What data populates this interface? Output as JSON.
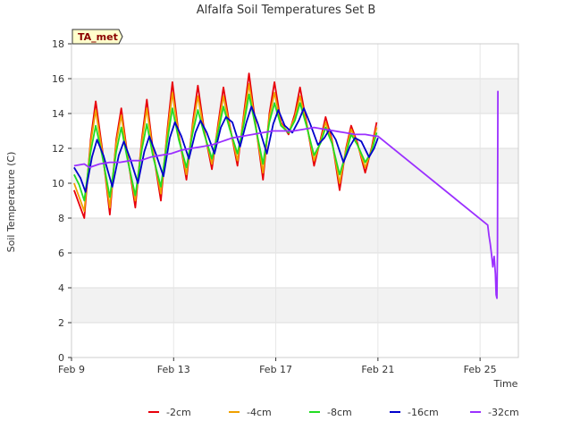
{
  "chart_data": {
    "type": "line",
    "title": "Alfalfa Soil Temperatures Set B",
    "xlabel": "Time",
    "ylabel": "Soil Temperature (C)",
    "badge": "TA_met",
    "ylim": [
      0,
      18
    ],
    "yticks": [
      0,
      2,
      4,
      6,
      8,
      10,
      12,
      14,
      16,
      18
    ],
    "xlim_days": [
      9,
      26.5
    ],
    "xticks": [
      {
        "label": "Feb 9",
        "day": 9
      },
      {
        "label": "Feb 13",
        "day": 13
      },
      {
        "label": "Feb 17",
        "day": 17
      },
      {
        "label": "Feb 21",
        "day": 21
      },
      {
        "label": "Feb 25",
        "day": 25
      }
    ],
    "grid": true,
    "legend_position": "bottom",
    "series": [
      {
        "name": "-2cm",
        "color": "#e8000b",
        "points": [
          [
            9.1,
            9.6
          ],
          [
            9.3,
            8.8
          ],
          [
            9.5,
            8.0
          ],
          [
            9.75,
            12.5
          ],
          [
            9.95,
            14.7
          ],
          [
            10.2,
            12.0
          ],
          [
            10.5,
            8.2
          ],
          [
            10.75,
            12.5
          ],
          [
            10.95,
            14.3
          ],
          [
            11.2,
            11.5
          ],
          [
            11.5,
            8.6
          ],
          [
            11.75,
            12.5
          ],
          [
            11.95,
            14.8
          ],
          [
            12.2,
            11.8
          ],
          [
            12.5,
            9.0
          ],
          [
            12.75,
            13.0
          ],
          [
            12.95,
            15.8
          ],
          [
            13.2,
            12.8
          ],
          [
            13.5,
            10.2
          ],
          [
            13.75,
            13.5
          ],
          [
            13.95,
            15.6
          ],
          [
            14.2,
            13.0
          ],
          [
            14.5,
            10.8
          ],
          [
            14.75,
            13.5
          ],
          [
            14.95,
            15.5
          ],
          [
            15.2,
            13.3
          ],
          [
            15.5,
            11.0
          ],
          [
            15.75,
            14.0
          ],
          [
            15.95,
            16.3
          ],
          [
            16.2,
            13.5
          ],
          [
            16.5,
            10.2
          ],
          [
            16.75,
            14.0
          ],
          [
            16.95,
            15.8
          ],
          [
            17.2,
            13.5
          ],
          [
            17.5,
            12.8
          ],
          [
            17.75,
            14.0
          ],
          [
            17.95,
            15.5
          ],
          [
            18.2,
            13.5
          ],
          [
            18.5,
            11.0
          ],
          [
            18.75,
            12.5
          ],
          [
            18.95,
            13.8
          ],
          [
            19.2,
            12.5
          ],
          [
            19.5,
            9.6
          ],
          [
            19.75,
            12.0
          ],
          [
            19.95,
            13.3
          ],
          [
            20.2,
            12.3
          ],
          [
            20.5,
            10.6
          ],
          [
            20.75,
            12.0
          ],
          [
            20.95,
            13.5
          ]
        ]
      },
      {
        "name": "-4cm",
        "color": "#f0a000",
        "points": [
          [
            9.1,
            10.0
          ],
          [
            9.3,
            9.2
          ],
          [
            9.5,
            8.4
          ],
          [
            9.75,
            12.3
          ],
          [
            9.95,
            14.2
          ],
          [
            10.2,
            11.8
          ],
          [
            10.5,
            8.6
          ],
          [
            10.75,
            12.3
          ],
          [
            10.95,
            13.9
          ],
          [
            11.2,
            11.4
          ],
          [
            11.5,
            9.0
          ],
          [
            11.75,
            12.3
          ],
          [
            11.95,
            14.3
          ],
          [
            12.2,
            11.7
          ],
          [
            12.5,
            9.4
          ],
          [
            12.75,
            12.8
          ],
          [
            12.95,
            15.2
          ],
          [
            13.2,
            12.7
          ],
          [
            13.5,
            10.5
          ],
          [
            13.75,
            13.3
          ],
          [
            13.95,
            15.0
          ],
          [
            14.2,
            12.9
          ],
          [
            14.5,
            11.1
          ],
          [
            14.75,
            13.3
          ],
          [
            14.95,
            15.0
          ],
          [
            15.2,
            13.2
          ],
          [
            15.5,
            11.3
          ],
          [
            15.75,
            13.8
          ],
          [
            15.95,
            15.7
          ],
          [
            16.2,
            13.4
          ],
          [
            16.5,
            10.6
          ],
          [
            16.75,
            13.8
          ],
          [
            16.95,
            15.2
          ],
          [
            17.2,
            13.4
          ],
          [
            17.5,
            12.9
          ],
          [
            17.75,
            13.8
          ],
          [
            17.95,
            15.0
          ],
          [
            18.2,
            13.4
          ],
          [
            18.5,
            11.3
          ],
          [
            18.75,
            12.4
          ],
          [
            18.95,
            13.5
          ],
          [
            19.2,
            12.4
          ],
          [
            19.5,
            10.0
          ],
          [
            19.75,
            11.9
          ],
          [
            19.95,
            13.1
          ],
          [
            20.2,
            12.2
          ],
          [
            20.5,
            10.9
          ],
          [
            20.75,
            11.9
          ],
          [
            20.95,
            13.2
          ]
        ]
      },
      {
        "name": "-8cm",
        "color": "#22dd22",
        "points": [
          [
            9.1,
            10.5
          ],
          [
            9.3,
            9.9
          ],
          [
            9.5,
            9.0
          ],
          [
            9.75,
            11.8
          ],
          [
            9.95,
            13.3
          ],
          [
            10.2,
            11.6
          ],
          [
            10.5,
            9.2
          ],
          [
            10.75,
            11.8
          ],
          [
            10.95,
            13.2
          ],
          [
            11.2,
            11.3
          ],
          [
            11.5,
            9.3
          ],
          [
            11.75,
            11.9
          ],
          [
            11.95,
            13.4
          ],
          [
            12.2,
            11.5
          ],
          [
            12.5,
            9.8
          ],
          [
            12.75,
            12.4
          ],
          [
            12.95,
            14.3
          ],
          [
            13.2,
            12.5
          ],
          [
            13.5,
            10.9
          ],
          [
            13.75,
            12.9
          ],
          [
            13.95,
            14.2
          ],
          [
            14.2,
            12.8
          ],
          [
            14.5,
            11.4
          ],
          [
            14.75,
            13.0
          ],
          [
            14.95,
            14.4
          ],
          [
            15.2,
            13.1
          ],
          [
            15.5,
            11.7
          ],
          [
            15.75,
            13.4
          ],
          [
            15.95,
            15.1
          ],
          [
            16.2,
            13.3
          ],
          [
            16.5,
            11.1
          ],
          [
            16.75,
            13.5
          ],
          [
            16.95,
            14.6
          ],
          [
            17.2,
            13.3
          ],
          [
            17.5,
            12.9
          ],
          [
            17.75,
            13.6
          ],
          [
            17.95,
            14.6
          ],
          [
            18.2,
            13.3
          ],
          [
            18.5,
            11.6
          ],
          [
            18.75,
            12.3
          ],
          [
            18.95,
            13.2
          ],
          [
            19.2,
            12.3
          ],
          [
            19.5,
            10.5
          ],
          [
            19.75,
            11.7
          ],
          [
            19.95,
            12.8
          ],
          [
            20.2,
            12.2
          ],
          [
            20.5,
            11.2
          ],
          [
            20.75,
            11.8
          ],
          [
            20.95,
            12.9
          ]
        ]
      },
      {
        "name": "-16cm",
        "color": "#0000cc",
        "points": [
          [
            9.1,
            10.9
          ],
          [
            9.35,
            10.3
          ],
          [
            9.55,
            9.5
          ],
          [
            9.8,
            11.5
          ],
          [
            10.0,
            12.5
          ],
          [
            10.25,
            11.6
          ],
          [
            10.6,
            9.8
          ],
          [
            10.85,
            11.6
          ],
          [
            11.05,
            12.4
          ],
          [
            11.3,
            11.4
          ],
          [
            11.6,
            10.0
          ],
          [
            11.85,
            11.8
          ],
          [
            12.05,
            12.7
          ],
          [
            12.3,
            11.7
          ],
          [
            12.6,
            10.4
          ],
          [
            12.85,
            12.6
          ],
          [
            13.05,
            13.5
          ],
          [
            13.3,
            12.7
          ],
          [
            13.6,
            11.4
          ],
          [
            13.85,
            12.9
          ],
          [
            14.05,
            13.6
          ],
          [
            14.3,
            12.9
          ],
          [
            14.6,
            11.7
          ],
          [
            14.85,
            13.2
          ],
          [
            15.05,
            13.8
          ],
          [
            15.3,
            13.5
          ],
          [
            15.6,
            12.1
          ],
          [
            15.85,
            13.5
          ],
          [
            16.05,
            14.4
          ],
          [
            16.3,
            13.4
          ],
          [
            16.65,
            11.7
          ],
          [
            16.9,
            13.4
          ],
          [
            17.1,
            14.2
          ],
          [
            17.35,
            13.3
          ],
          [
            17.65,
            12.9
          ],
          [
            17.9,
            13.6
          ],
          [
            18.1,
            14.3
          ],
          [
            18.35,
            13.4
          ],
          [
            18.65,
            12.2
          ],
          [
            18.9,
            12.6
          ],
          [
            19.1,
            13.1
          ],
          [
            19.35,
            12.5
          ],
          [
            19.65,
            11.2
          ],
          [
            19.9,
            12.1
          ],
          [
            20.1,
            12.6
          ],
          [
            20.35,
            12.4
          ],
          [
            20.65,
            11.5
          ],
          [
            20.85,
            12.0
          ],
          [
            21.0,
            12.6
          ]
        ]
      },
      {
        "name": "-32cm",
        "color": "#9b30ff",
        "points": [
          [
            9.1,
            11.0
          ],
          [
            9.5,
            11.1
          ],
          [
            9.7,
            10.9
          ],
          [
            10.1,
            11.1
          ],
          [
            10.5,
            11.2
          ],
          [
            10.9,
            11.2
          ],
          [
            11.3,
            11.3
          ],
          [
            11.7,
            11.3
          ],
          [
            12.1,
            11.5
          ],
          [
            12.5,
            11.6
          ],
          [
            12.9,
            11.7
          ],
          [
            13.3,
            11.9
          ],
          [
            13.7,
            12.0
          ],
          [
            14.1,
            12.1
          ],
          [
            14.5,
            12.2
          ],
          [
            14.9,
            12.4
          ],
          [
            15.3,
            12.6
          ],
          [
            15.7,
            12.7
          ],
          [
            16.1,
            12.8
          ],
          [
            16.5,
            12.9
          ],
          [
            16.9,
            13.0
          ],
          [
            17.3,
            13.0
          ],
          [
            17.7,
            13.0
          ],
          [
            18.1,
            13.1
          ],
          [
            18.5,
            13.2
          ],
          [
            18.9,
            13.1
          ],
          [
            19.3,
            13.0
          ],
          [
            19.7,
            12.9
          ],
          [
            20.1,
            12.8
          ],
          [
            20.5,
            12.8
          ],
          [
            20.9,
            12.7
          ],
          [
            21.0,
            12.7
          ],
          [
            25.3,
            7.6
          ],
          [
            25.35,
            7.0
          ],
          [
            25.4,
            6.5
          ],
          [
            25.45,
            5.9
          ],
          [
            25.5,
            5.2
          ],
          [
            25.55,
            5.8
          ],
          [
            25.6,
            4.8
          ],
          [
            25.63,
            3.6
          ],
          [
            25.66,
            3.4
          ],
          [
            25.68,
            6.0
          ],
          [
            25.7,
            15.3
          ]
        ]
      }
    ]
  }
}
